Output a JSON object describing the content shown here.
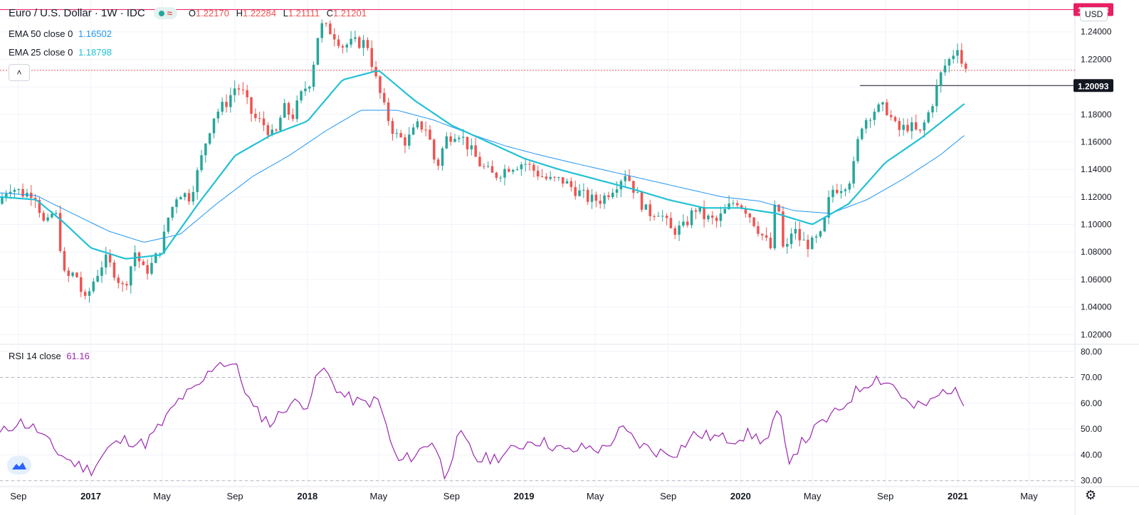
{
  "header": {
    "symbol": "Euro / U.S. Dollar · 1W · IDC",
    "ohlc": {
      "o_label": "O",
      "o": "1.22170",
      "h_label": "H",
      "h": "1.22284",
      "l_label": "L",
      "l": "1.21111",
      "c_label": "C",
      "c": "1.21201"
    },
    "approx_symbol": "≈",
    "currency": "USD"
  },
  "indicators": {
    "ema50": {
      "label": "EMA 50 close 0",
      "value": "1.16502",
      "color": "#2196f3"
    },
    "ema25": {
      "label": "EMA 25 close 0",
      "value": "1.18798",
      "color": "#22c1d4"
    },
    "rsi": {
      "label": "RSI 14 close",
      "value": "61.16",
      "color": "#9c27b0"
    }
  },
  "icons": {
    "collapse": "chevron-up-icon",
    "logo": "chart-logo-icon",
    "settings": "gear-icon"
  },
  "colors": {
    "up": "#26a69a",
    "down": "#ef5350",
    "marker": "#e91e63",
    "black": "#131722",
    "grid": "#f0f3fa"
  },
  "chart_data": [
    {
      "type": "candlestick",
      "title": "Euro / U.S. Dollar · 1W · IDC",
      "x_range": [
        "2016-08-01",
        "2021-07-15"
      ],
      "x_ticks": [
        {
          "label": "Sep",
          "date": "2016-09-01"
        },
        {
          "label": "2017",
          "date": "2017-01-01"
        },
        {
          "label": "May",
          "date": "2017-05-01"
        },
        {
          "label": "Sep",
          "date": "2017-09-01"
        },
        {
          "label": "2018",
          "date": "2018-01-01"
        },
        {
          "label": "May",
          "date": "2018-05-01"
        },
        {
          "label": "Sep",
          "date": "2018-09-01"
        },
        {
          "label": "2019",
          "date": "2019-01-01"
        },
        {
          "label": "May",
          "date": "2019-05-01"
        },
        {
          "label": "Sep",
          "date": "2019-09-01"
        },
        {
          "label": "2020",
          "date": "2020-01-01"
        },
        {
          "label": "May",
          "date": "2020-05-01"
        },
        {
          "label": "Sep",
          "date": "2020-09-01"
        },
        {
          "label": "2021",
          "date": "2021-01-01"
        },
        {
          "label": "May",
          "date": "2021-05-01"
        }
      ],
      "y_range": [
        1.015,
        1.26
      ],
      "y_ticks": [
        "1.02000",
        "1.04000",
        "1.06000",
        "1.08000",
        "1.10000",
        "1.12000",
        "1.14000",
        "1.16000",
        "1.18000",
        "1.20000",
        "1.22000",
        "1.24000"
      ],
      "top_tick_partial": "1.26000",
      "price_path": [
        [
          "2016-08-01",
          1.115
        ],
        [
          "2016-08-20",
          1.128
        ],
        [
          "2016-09-15",
          1.122
        ],
        [
          "2016-10-01",
          1.124
        ],
        [
          "2016-10-20",
          1.097
        ],
        [
          "2016-11-05",
          1.112
        ],
        [
          "2016-11-22",
          1.06
        ],
        [
          "2016-12-10",
          1.065
        ],
        [
          "2016-12-25",
          1.043
        ],
        [
          "2017-01-10",
          1.06
        ],
        [
          "2017-01-28",
          1.075
        ],
        [
          "2017-02-10",
          1.068
        ],
        [
          "2017-03-01",
          1.053
        ],
        [
          "2017-03-20",
          1.08
        ],
        [
          "2017-04-05",
          1.065
        ],
        [
          "2017-04-20",
          1.072
        ],
        [
          "2017-05-06",
          1.088
        ],
        [
          "2017-05-15",
          1.105
        ],
        [
          "2017-06-01",
          1.124
        ],
        [
          "2017-06-20",
          1.12
        ],
        [
          "2017-07-05",
          1.14
        ],
        [
          "2017-07-20",
          1.165
        ],
        [
          "2017-08-01",
          1.18
        ],
        [
          "2017-08-20",
          1.188
        ],
        [
          "2017-09-05",
          1.2
        ],
        [
          "2017-09-15",
          1.198
        ],
        [
          "2017-10-05",
          1.178
        ],
        [
          "2017-10-25",
          1.172
        ],
        [
          "2017-11-10",
          1.162
        ],
        [
          "2017-11-25",
          1.185
        ],
        [
          "2017-12-10",
          1.178
        ],
        [
          "2017-12-28",
          1.197
        ],
        [
          "2018-01-10",
          1.205
        ],
        [
          "2018-01-25",
          1.245
        ],
        [
          "2018-02-15",
          1.24
        ],
        [
          "2018-03-05",
          1.23
        ],
        [
          "2018-03-25",
          1.232
        ],
        [
          "2018-04-15",
          1.232
        ],
        [
          "2018-04-30",
          1.205
        ],
        [
          "2018-05-15",
          1.183
        ],
        [
          "2018-06-01",
          1.165
        ],
        [
          "2018-06-20",
          1.16
        ],
        [
          "2018-07-10",
          1.172
        ],
        [
          "2018-07-25",
          1.17
        ],
        [
          "2018-08-10",
          1.14
        ],
        [
          "2018-08-25",
          1.162
        ],
        [
          "2018-09-15",
          1.168
        ],
        [
          "2018-10-05",
          1.155
        ],
        [
          "2018-10-25",
          1.142
        ],
        [
          "2018-11-15",
          1.135
        ],
        [
          "2018-12-10",
          1.142
        ],
        [
          "2019-01-05",
          1.145
        ],
        [
          "2019-01-25",
          1.138
        ],
        [
          "2019-02-15",
          1.132
        ],
        [
          "2019-03-10",
          1.132
        ],
        [
          "2019-04-01",
          1.125
        ],
        [
          "2019-04-25",
          1.118
        ],
        [
          "2019-05-15",
          1.118
        ],
        [
          "2019-06-10",
          1.13
        ],
        [
          "2019-06-25",
          1.138
        ],
        [
          "2019-07-15",
          1.12
        ],
        [
          "2019-08-01",
          1.108
        ],
        [
          "2019-08-20",
          1.11
        ],
        [
          "2019-09-10",
          1.095
        ],
        [
          "2019-10-01",
          1.098
        ],
        [
          "2019-10-20",
          1.112
        ],
        [
          "2019-11-05",
          1.105
        ],
        [
          "2019-11-25",
          1.102
        ],
        [
          "2019-12-10",
          1.11
        ],
        [
          "2019-12-28",
          1.118
        ],
        [
          "2020-01-15",
          1.11
        ],
        [
          "2020-02-10",
          1.092
        ],
        [
          "2020-02-25",
          1.082
        ],
        [
          "2020-03-05",
          1.125
        ],
        [
          "2020-03-18",
          1.075
        ],
        [
          "2020-04-01",
          1.098
        ],
        [
          "2020-04-15",
          1.088
        ],
        [
          "2020-05-01",
          1.085
        ],
        [
          "2020-05-20",
          1.092
        ],
        [
          "2020-06-05",
          1.125
        ],
        [
          "2020-06-25",
          1.128
        ],
        [
          "2020-07-10",
          1.135
        ],
        [
          "2020-07-25",
          1.172
        ],
        [
          "2020-08-15",
          1.183
        ],
        [
          "2020-09-05",
          1.185
        ],
        [
          "2020-09-25",
          1.168
        ],
        [
          "2020-10-15",
          1.172
        ],
        [
          "2020-11-01",
          1.165
        ],
        [
          "2020-11-20",
          1.185
        ],
        [
          "2020-12-10",
          1.213
        ],
        [
          "2020-12-25",
          1.222
        ],
        [
          "2021-01-06",
          1.232
        ],
        [
          "2021-01-13",
          1.212
        ]
      ],
      "ema25_path": [
        [
          "2016-08-01",
          1.12
        ],
        [
          "2016-10-01",
          1.118
        ],
        [
          "2016-11-15",
          1.102
        ],
        [
          "2017-01-01",
          1.083
        ],
        [
          "2017-03-01",
          1.075
        ],
        [
          "2017-05-01",
          1.078
        ],
        [
          "2017-07-01",
          1.115
        ],
        [
          "2017-09-01",
          1.15
        ],
        [
          "2017-11-01",
          1.165
        ],
        [
          "2018-01-01",
          1.175
        ],
        [
          "2018-03-01",
          1.205
        ],
        [
          "2018-05-01",
          1.212
        ],
        [
          "2018-07-01",
          1.19
        ],
        [
          "2018-09-01",
          1.172
        ],
        [
          "2018-11-01",
          1.16
        ],
        [
          "2019-01-01",
          1.148
        ],
        [
          "2019-03-01",
          1.14
        ],
        [
          "2019-05-01",
          1.133
        ],
        [
          "2019-07-01",
          1.126
        ],
        [
          "2019-09-01",
          1.118
        ],
        [
          "2019-11-01",
          1.112
        ],
        [
          "2020-01-01",
          1.112
        ],
        [
          "2020-03-01",
          1.108
        ],
        [
          "2020-05-01",
          1.1
        ],
        [
          "2020-07-01",
          1.115
        ],
        [
          "2020-09-01",
          1.145
        ],
        [
          "2020-11-01",
          1.163
        ],
        [
          "2021-01-13",
          1.188
        ]
      ],
      "ema50_path": [
        [
          "2016-08-01",
          1.123
        ],
        [
          "2016-10-01",
          1.121
        ],
        [
          "2016-12-01",
          1.108
        ],
        [
          "2017-02-01",
          1.095
        ],
        [
          "2017-04-01",
          1.087
        ],
        [
          "2017-06-01",
          1.093
        ],
        [
          "2017-08-01",
          1.115
        ],
        [
          "2017-10-01",
          1.135
        ],
        [
          "2017-12-01",
          1.15
        ],
        [
          "2018-02-01",
          1.168
        ],
        [
          "2018-04-01",
          1.183
        ],
        [
          "2018-06-01",
          1.183
        ],
        [
          "2018-08-01",
          1.176
        ],
        [
          "2018-10-01",
          1.166
        ],
        [
          "2018-12-01",
          1.157
        ],
        [
          "2019-02-01",
          1.15
        ],
        [
          "2019-04-01",
          1.144
        ],
        [
          "2019-06-01",
          1.138
        ],
        [
          "2019-08-01",
          1.132
        ],
        [
          "2019-10-01",
          1.126
        ],
        [
          "2019-12-01",
          1.12
        ],
        [
          "2020-02-01",
          1.117
        ],
        [
          "2020-04-01",
          1.11
        ],
        [
          "2020-06-01",
          1.108
        ],
        [
          "2020-08-01",
          1.118
        ],
        [
          "2020-10-01",
          1.133
        ],
        [
          "2020-12-01",
          1.15
        ],
        [
          "2021-01-13",
          1.165
        ]
      ],
      "horizontal_lines": [
        {
          "label": "1.25613",
          "value": 1.25613,
          "color": "#e91e63",
          "style": "solid",
          "from": "2016-08-01"
        },
        {
          "label": "1.20093",
          "value": 1.20093,
          "color": "#131722",
          "style": "solid",
          "from": "2020-07-20"
        },
        {
          "value": 1.21201,
          "color": "#ef5350",
          "style": "dotted",
          "from": "2016-08-01"
        }
      ]
    },
    {
      "type": "line",
      "title": "RSI 14 close",
      "y_range": [
        28,
        82
      ],
      "y_ticks": [
        "30.00",
        "40.00",
        "50.00",
        "60.00",
        "70.00",
        "80.00"
      ],
      "bands": [
        30,
        70
      ],
      "series": [
        {
          "name": "RSI 14 close",
          "x": [
            "2016-08-01",
            "2016-09-01",
            "2016-10-01",
            "2016-11-01",
            "2016-12-01",
            "2017-01-01",
            "2017-02-01",
            "2017-03-01",
            "2017-04-01",
            "2017-05-01",
            "2017-06-01",
            "2017-07-01",
            "2017-08-01",
            "2017-09-01",
            "2017-10-01",
            "2017-11-01",
            "2017-12-01",
            "2018-01-01",
            "2018-01-25",
            "2018-03-01",
            "2018-04-01",
            "2018-05-01",
            "2018-06-01",
            "2018-07-01",
            "2018-08-01",
            "2018-08-20",
            "2018-09-15",
            "2018-10-15",
            "2018-11-15",
            "2018-12-15",
            "2019-01-15",
            "2019-02-15",
            "2019-03-15",
            "2019-04-15",
            "2019-05-15",
            "2019-06-15",
            "2019-07-15",
            "2019-08-15",
            "2019-09-15",
            "2019-10-15",
            "2019-11-15",
            "2019-12-15",
            "2020-01-15",
            "2020-02-15",
            "2020-03-05",
            "2020-03-20",
            "2020-04-15",
            "2020-05-15",
            "2020-06-15",
            "2020-07-15",
            "2020-08-15",
            "2020-09-15",
            "2020-10-15",
            "2020-11-15",
            "2020-12-15",
            "2021-01-13"
          ],
          "y": [
            48,
            53,
            50,
            42,
            37,
            34,
            43,
            46,
            44,
            52,
            62,
            66,
            76,
            75,
            58,
            52,
            60,
            60,
            74,
            63,
            60,
            61,
            37,
            40,
            46,
            32,
            48,
            38,
            39,
            42,
            46,
            44,
            41,
            43,
            42,
            50,
            44,
            41,
            41,
            48,
            47,
            46,
            48,
            45,
            58,
            38,
            45,
            52,
            57,
            65,
            70,
            67,
            58,
            60,
            66,
            61
          ]
        }
      ]
    }
  ]
}
